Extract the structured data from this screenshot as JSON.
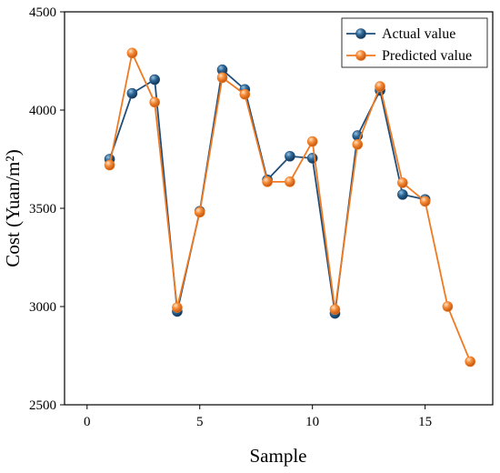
{
  "chart_data": {
    "type": "line",
    "xlabel": "Sample",
    "ylabel": "Cost (Yuan/m²)",
    "xlim": [
      -1,
      18
    ],
    "ylim": [
      2500,
      4500
    ],
    "xticks": [
      0,
      5,
      10,
      15
    ],
    "yticks": [
      2500,
      3000,
      3500,
      4000,
      4500
    ],
    "legend_position": "top-right",
    "grid": false,
    "series": [
      {
        "name": "Actual value",
        "color": "#1f4e79",
        "x": [
          1,
          2,
          3,
          4,
          5,
          6,
          7,
          8,
          9,
          10,
          11,
          12,
          13,
          14,
          15
        ],
        "values": [
          3750,
          4085,
          4155,
          2975,
          3485,
          4205,
          4105,
          3645,
          3765,
          3755,
          2965,
          3870,
          4100,
          3570,
          3545
        ]
      },
      {
        "name": "Predicted value",
        "color": "#f07a22",
        "x": [
          1,
          2,
          3,
          4,
          5,
          6,
          7,
          8,
          9,
          10,
          11,
          12,
          13,
          14,
          15,
          16,
          17
        ],
        "values": [
          3720,
          4290,
          4040,
          2995,
          3480,
          4165,
          4080,
          3635,
          3635,
          3840,
          2985,
          3825,
          4120,
          3630,
          3535,
          3000,
          2720
        ]
      }
    ]
  }
}
